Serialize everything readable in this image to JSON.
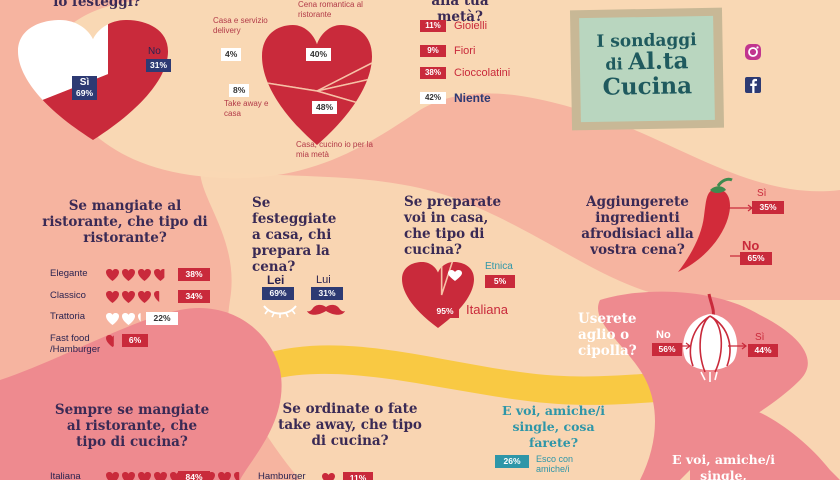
{
  "colors": {
    "bg": "#f6b4a0",
    "red": "#c92a3b",
    "navy": "#2d3a73",
    "teal": "#2e96a8",
    "yellow": "#f9c943",
    "cream": "#f9d8b4",
    "pink": "#ee8a8f"
  },
  "brand": {
    "line1": "I sondaggi",
    "line2_a": "di",
    "line2_b": "Al.ta",
    "line3": "Cucina"
  },
  "social": {
    "icons": [
      "instagram-icon",
      "facebook-icon"
    ]
  },
  "chart_data": [
    {
      "id": "festeggi",
      "type": "pie",
      "title": "io festeggi?",
      "categories": [
        "Sì",
        "No"
      ],
      "values": [
        69,
        31
      ],
      "labels": [
        "69%",
        "31%"
      ]
    },
    {
      "id": "come",
      "type": "pie",
      "title": "",
      "categories": [
        "Cena romantica al ristorante",
        "Casa e servizio delivery",
        "Take away e casa",
        "Casa, cucino io per la mia metà"
      ],
      "values": [
        40,
        4,
        8,
        48
      ],
      "labels": [
        "40%",
        "4%",
        "8%",
        "48%"
      ]
    },
    {
      "id": "regalo",
      "type": "bar",
      "title": "alla tua metà?",
      "categories": [
        "Gioielli",
        "Fiori",
        "Cioccolatini",
        "Niente"
      ],
      "values": [
        11,
        9,
        38,
        42
      ],
      "labels": [
        "11%",
        "9%",
        "38%",
        "42%"
      ]
    },
    {
      "id": "ristorante",
      "type": "bar",
      "title": "Se mangiate al ristorante, che tipo di ristorante?",
      "categories": [
        "Elegante",
        "Classico",
        "Trattoria",
        "Fast food /Hamburger"
      ],
      "values": [
        38,
        34,
        22,
        6
      ],
      "labels": [
        "38%",
        "34%",
        "22%",
        "6%"
      ]
    },
    {
      "id": "chiprepara",
      "type": "bar",
      "title": "Se festeggiate a casa, chi prepara la cena?",
      "categories": [
        "Lei",
        "Lui"
      ],
      "values": [
        69,
        31
      ],
      "labels": [
        "69%",
        "31%"
      ]
    },
    {
      "id": "tipocucina",
      "type": "pie",
      "title": "Se preparate voi in casa, che tipo di cucina?",
      "categories": [
        "Etnica",
        "Italiana"
      ],
      "values": [
        5,
        95
      ],
      "labels": [
        "5%",
        "95%"
      ]
    },
    {
      "id": "afrodisiaci",
      "type": "bar",
      "title": "Aggiungerete ingredienti afrodisiaci alla vostra cena?",
      "categories": [
        "Sì",
        "No"
      ],
      "values": [
        35,
        65
      ],
      "labels": [
        "35%",
        "65%"
      ]
    },
    {
      "id": "aglio",
      "type": "bar",
      "title": "Userete aglio o cipolla?",
      "categories": [
        "No",
        "Sì"
      ],
      "values": [
        56,
        44
      ],
      "labels": [
        "56%",
        "44%"
      ]
    },
    {
      "id": "tipocucinarist",
      "type": "bar",
      "title": "Sempre se mangiate al ristorante, che tipo di cucina?",
      "categories": [
        "Italiana"
      ],
      "values": [
        84
      ],
      "labels": [
        "84%"
      ]
    },
    {
      "id": "takeaway",
      "type": "bar",
      "title": "Se ordinate o fate take away, che tipo di cucina?",
      "categories": [
        "Hamburger"
      ],
      "values": [
        11
      ],
      "labels": [
        "11%"
      ]
    },
    {
      "id": "single",
      "type": "bar",
      "title": "E voi, amiche/i single, cosa farete?",
      "categories": [
        "Esco con amiche/i"
      ],
      "values": [
        26
      ],
      "labels": [
        "26%"
      ]
    },
    {
      "id": "single2",
      "type": "bar",
      "title": "E voi, amiche/i single, festeggiate",
      "categories": [],
      "values": []
    }
  ]
}
